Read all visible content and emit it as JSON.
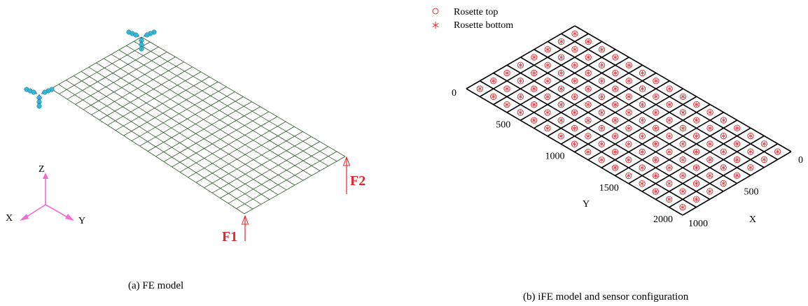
{
  "panel_a": {
    "caption": "(a) FE model",
    "mesh": {
      "cols": 24,
      "rows": 12
    },
    "forces": {
      "f1": "F1",
      "f2": "F2"
    },
    "axes": {
      "x": "X",
      "y": "Y",
      "z": "Z"
    },
    "colors": {
      "mesh": "#2f5a2a",
      "support": "#35b8d8",
      "force": "#e8262d",
      "triad": "#f06bd3"
    },
    "icons": {
      "support": "pin-support-icon",
      "force": "arrow-up-icon",
      "triad": "coordinate-triad-icon"
    }
  },
  "panel_b": {
    "caption": "(b) iFE model and sensor configuration",
    "legend": [
      {
        "marker": "circle",
        "label": "Rosette top"
      },
      {
        "marker": "asterisk",
        "label": "Rosette bottom"
      }
    ],
    "grid": {
      "cols": 16,
      "rows": 8
    },
    "y_axis": {
      "label": "Y",
      "ticks": [
        "0",
        "500",
        "1000",
        "1500",
        "2000"
      ]
    },
    "x_axis": {
      "label": "X",
      "ticks": [
        "0",
        "500",
        "1000"
      ]
    },
    "colors": {
      "element_edge": "#000000",
      "sensor": "#e8262d"
    }
  }
}
